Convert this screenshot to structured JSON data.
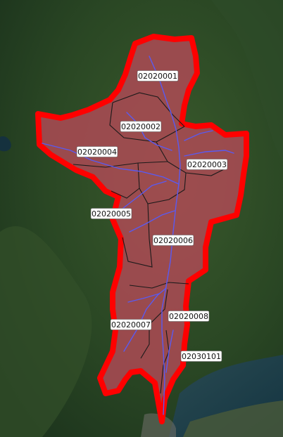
{
  "map": {
    "basemap": "satellite-imagery",
    "colors": {
      "watershed_fill": "#b24a57",
      "watershed_outline": "#ff0000",
      "subbasin_boundary": "#1a1a1a",
      "stream": "#5a5af0",
      "land_dark": "#1f3a22",
      "land_light": "#3c5a30",
      "water": "#1d3b4a"
    },
    "huc_labels": [
      "02020001",
      "02020002",
      "02020003",
      "02020004",
      "02020005",
      "02020006",
      "02020007",
      "02020008",
      "02030101"
    ]
  }
}
